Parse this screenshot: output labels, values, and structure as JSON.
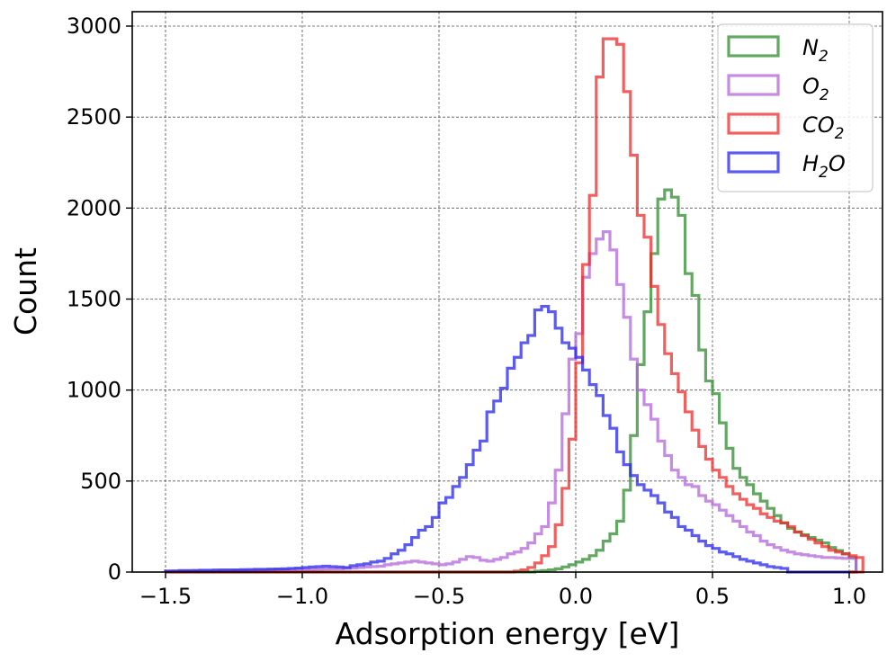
{
  "chart_data": {
    "type": "histogram",
    "title": "",
    "xlabel": "Adsorption energy [eV]",
    "ylabel": "Count",
    "xlim": [
      -1.5,
      1.0
    ],
    "ylim": [
      0,
      3000
    ],
    "xticks": [
      -1.5,
      -1.0,
      -0.5,
      0.0,
      0.5,
      1.0
    ],
    "xtick_labels": [
      "−1.5",
      "−1.0",
      "−0.5",
      "0.0",
      "0.5",
      "1.0"
    ],
    "yticks": [
      0,
      500,
      1000,
      1500,
      2000,
      2500,
      3000
    ],
    "ytick_labels": [
      "0",
      "500",
      "1000",
      "1500",
      "2000",
      "2500",
      "3000"
    ],
    "grid": true,
    "legend_position": "top-right",
    "bin_start": -1.5,
    "bin_width": 0.025,
    "series": [
      {
        "name": "N2",
        "label_main": "N",
        "label_sub": "2",
        "color": "#2e8b2e",
        "values": [
          0,
          0,
          0,
          0,
          0,
          0,
          0,
          0,
          0,
          0,
          0,
          0,
          0,
          0,
          0,
          0,
          0,
          0,
          0,
          0,
          0,
          0,
          0,
          0,
          0,
          0,
          0,
          0,
          0,
          0,
          0,
          0,
          0,
          0,
          0,
          0,
          0,
          0,
          0,
          0,
          0,
          0,
          0,
          0,
          0,
          0,
          0,
          0,
          0,
          0,
          0,
          0,
          0,
          0,
          5,
          8,
          12,
          18,
          28,
          40,
          55,
          70,
          90,
          120,
          170,
          210,
          280,
          450,
          750,
          1140,
          1430,
          1750,
          2050,
          2100,
          2060,
          1960,
          1640,
          1520,
          1220,
          1050,
          980,
          820,
          680,
          570,
          520,
          480,
          430,
          390,
          350,
          310,
          270,
          240,
          220,
          205,
          190,
          175,
          160,
          135,
          118,
          100,
          80
        ]
      },
      {
        "name": "O2",
        "label_main": "O",
        "label_sub": "2",
        "color": "#b366d9",
        "values": [
          5,
          5,
          5,
          5,
          5,
          5,
          5,
          5,
          5,
          5,
          8,
          8,
          8,
          10,
          10,
          10,
          12,
          12,
          12,
          14,
          15,
          15,
          16,
          17,
          18,
          18,
          20,
          22,
          25,
          28,
          30,
          32,
          40,
          45,
          50,
          55,
          60,
          55,
          50,
          45,
          40,
          45,
          55,
          70,
          85,
          80,
          65,
          60,
          70,
          80,
          100,
          110,
          130,
          160,
          210,
          250,
          380,
          560,
          870,
          1170,
          1310,
          1620,
          1750,
          1830,
          1870,
          1770,
          1580,
          1400,
          1170,
          1000,
          920,
          840,
          720,
          640,
          560,
          520,
          480,
          470,
          420,
          390,
          370,
          340,
          310,
          280,
          250,
          220,
          200,
          170,
          150,
          135,
          120,
          110,
          100,
          95,
          90,
          85,
          80,
          80,
          78,
          75,
          75
        ]
      },
      {
        "name": "CO2",
        "label_main": "CO",
        "label_sub": "2",
        "color": "#ee2a2a",
        "values": [
          0,
          0,
          0,
          0,
          0,
          0,
          0,
          0,
          0,
          0,
          0,
          0,
          0,
          0,
          0,
          0,
          0,
          0,
          0,
          0,
          0,
          0,
          0,
          0,
          0,
          0,
          0,
          0,
          0,
          0,
          0,
          0,
          0,
          0,
          0,
          0,
          0,
          0,
          0,
          0,
          0,
          0,
          0,
          0,
          0,
          0,
          0,
          0,
          0,
          0,
          0,
          5,
          12,
          25,
          50,
          90,
          140,
          260,
          460,
          730,
          1150,
          1690,
          2070,
          2720,
          2930,
          2930,
          2900,
          2640,
          2290,
          1960,
          1840,
          1570,
          1360,
          1200,
          1090,
          990,
          880,
          780,
          690,
          620,
          560,
          520,
          470,
          430,
          400,
          370,
          350,
          320,
          300,
          280,
          270,
          250,
          220,
          200,
          180,
          160,
          140,
          120,
          110,
          100,
          90,
          80
        ]
      },
      {
        "name": "H2O",
        "label_main": "H",
        "label_sub": "2",
        "label_tail": "O",
        "color": "#2424ee",
        "values": [
          5,
          6,
          8,
          8,
          9,
          10,
          10,
          11,
          12,
          12,
          12,
          13,
          14,
          15,
          15,
          16,
          17,
          18,
          20,
          22,
          25,
          28,
          30,
          32,
          30,
          28,
          25,
          35,
          40,
          45,
          55,
          60,
          75,
          100,
          120,
          150,
          190,
          230,
          250,
          300,
          380,
          410,
          470,
          520,
          590,
          670,
          720,
          880,
          940,
          1010,
          1120,
          1180,
          1260,
          1300,
          1440,
          1460,
          1430,
          1340,
          1260,
          1230,
          1180,
          1110,
          1030,
          970,
          860,
          790,
          660,
          590,
          530,
          480,
          450,
          420,
          380,
          330,
          300,
          250,
          230,
          200,
          170,
          145,
          130,
          110,
          100,
          85,
          70,
          60,
          50,
          40,
          30,
          25,
          20
        ]
      }
    ]
  }
}
